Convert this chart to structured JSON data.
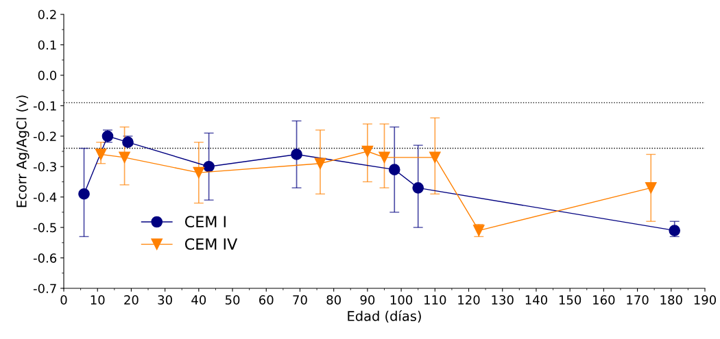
{
  "chart_data": {
    "type": "line",
    "xlabel": "Edad (días)",
    "ylabel": "Ecorr Ag/AgCl (v)",
    "xlim": [
      0,
      190
    ],
    "xticks": [
      0,
      10,
      20,
      30,
      40,
      50,
      60,
      70,
      80,
      90,
      100,
      110,
      120,
      130,
      140,
      150,
      160,
      170,
      180,
      190
    ],
    "ylim": [
      -0.7,
      0.2
    ],
    "yticks": [
      -0.7,
      -0.6,
      -0.5,
      -0.4,
      -0.3,
      -0.2,
      -0.1,
      {
        "value": 0,
        "label": "0.0"
      },
      0.1,
      0.2
    ],
    "legend": "bottom left",
    "grid": false,
    "line_style": "solid",
    "ref_lines": [
      {
        "axis": "y",
        "value": -0.09,
        "line_style": "dotted",
        "color": "#000000"
      },
      {
        "axis": "y",
        "value": -0.24,
        "line_style": "dotted",
        "color": "#000000"
      }
    ],
    "series": [
      {
        "name": "CEM I",
        "color": "#000080",
        "marker": "circle",
        "x": [
          6,
          13,
          19,
          43,
          69,
          98,
          105,
          181
        ],
        "values": [
          -0.39,
          -0.2,
          -0.22,
          -0.3,
          -0.26,
          -0.31,
          -0.37,
          -0.51
        ],
        "errors": [
          [
            -0.53,
            -0.24
          ],
          [
            -0.22,
            -0.18
          ],
          [
            -0.23,
            -0.2
          ],
          [
            -0.41,
            -0.19
          ],
          [
            -0.37,
            -0.15
          ],
          [
            -0.45,
            -0.17
          ],
          [
            -0.5,
            -0.23
          ],
          [
            -0.53,
            -0.48
          ]
        ]
      },
      {
        "name": "CEM IV",
        "color": "#ff8000",
        "marker": "triangle",
        "x": [
          11,
          18,
          40,
          76,
          90,
          95,
          110,
          123,
          174
        ],
        "values": [
          -0.26,
          -0.27,
          -0.32,
          -0.29,
          -0.25,
          -0.27,
          -0.27,
          -0.51,
          -0.37
        ],
        "errors": [
          [
            -0.29,
            -0.22
          ],
          [
            -0.36,
            -0.17
          ],
          [
            -0.42,
            -0.22
          ],
          [
            -0.39,
            -0.18
          ],
          [
            -0.35,
            -0.16
          ],
          [
            -0.37,
            -0.16
          ],
          [
            -0.39,
            -0.14
          ],
          [
            -0.53,
            -0.49
          ],
          [
            -0.48,
            -0.26
          ]
        ]
      }
    ]
  }
}
